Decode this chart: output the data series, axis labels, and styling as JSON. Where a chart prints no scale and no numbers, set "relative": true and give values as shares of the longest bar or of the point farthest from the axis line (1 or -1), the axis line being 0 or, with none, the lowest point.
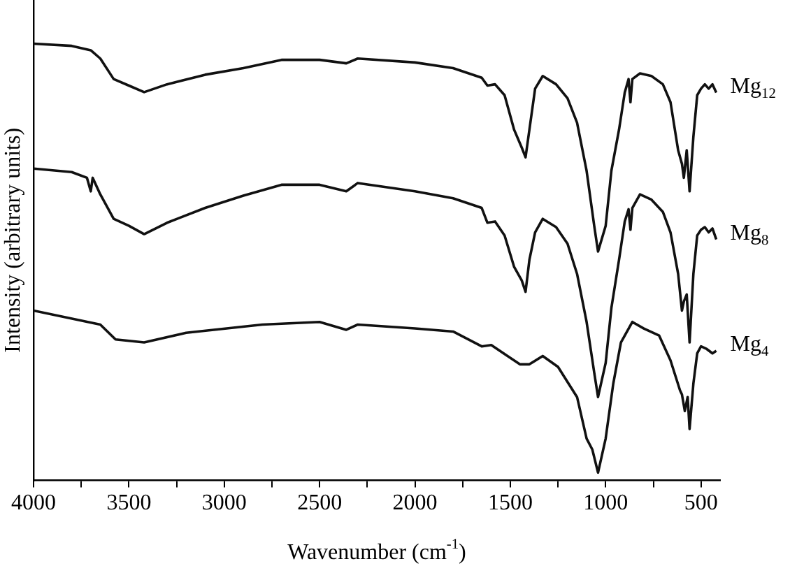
{
  "chart_data": {
    "type": "line",
    "xlabel": "Wavenumber (cm$^{-1}$)",
    "ylabel": "Intensity (arbitrary units)",
    "relative": true,
    "grid": false,
    "legend": false,
    "marker": "none",
    "line_style": "solid",
    "xlim": [
      4000,
      400
    ],
    "xticks": [
      4000,
      {
        "value": 3750,
        "label": null
      },
      3500,
      {
        "value": 3250,
        "label": null
      },
      3000,
      {
        "value": 2750,
        "label": null
      },
      2500,
      {
        "value": 2250,
        "label": null
      },
      2000,
      {
        "value": 1750,
        "label": null
      },
      1500,
      {
        "value": 1250,
        "label": null
      },
      1000,
      {
        "value": 750,
        "label": null
      },
      500
    ],
    "series": [
      {
        "name": "Mg$_{12}$",
        "color": "#111111",
        "x": [
          4000,
          3800,
          3700,
          3650,
          3580,
          3500,
          3420,
          3300,
          3100,
          2900,
          2700,
          2500,
          2360,
          2300,
          2000,
          1800,
          1650,
          1620,
          1580,
          1530,
          1480,
          1440,
          1420,
          1400,
          1370,
          1330,
          1260,
          1200,
          1150,
          1100,
          1060,
          1040,
          1000,
          970,
          930,
          900,
          880,
          870,
          860,
          820,
          760,
          700,
          660,
          620,
          600,
          590,
          575,
          560,
          540,
          520,
          500,
          480,
          460,
          440,
          420
        ],
        "values": [
          1.0,
          0.995,
          0.985,
          0.966,
          0.919,
          0.904,
          0.889,
          0.907,
          0.929,
          0.944,
          0.963,
          0.963,
          0.955,
          0.966,
          0.957,
          0.944,
          0.922,
          0.904,
          0.907,
          0.882,
          0.803,
          0.762,
          0.74,
          0.803,
          0.897,
          0.926,
          0.907,
          0.875,
          0.819,
          0.709,
          0.583,
          0.524,
          0.583,
          0.709,
          0.803,
          0.888,
          0.919,
          0.866,
          0.919,
          0.932,
          0.926,
          0.907,
          0.866,
          0.756,
          0.725,
          0.693,
          0.756,
          0.662,
          0.787,
          0.882,
          0.897,
          0.907,
          0.897,
          0.907,
          0.888
        ]
      },
      {
        "name": "Mg$_{8}$",
        "color": "#111111",
        "x": [
          4000,
          3800,
          3720,
          3700,
          3690,
          3650,
          3580,
          3500,
          3420,
          3300,
          3100,
          2900,
          2700,
          2500,
          2360,
          2300,
          2000,
          1800,
          1650,
          1620,
          1580,
          1530,
          1480,
          1440,
          1420,
          1400,
          1370,
          1330,
          1260,
          1200,
          1150,
          1100,
          1060,
          1040,
          1000,
          970,
          930,
          900,
          880,
          870,
          860,
          820,
          760,
          700,
          660,
          620,
          600,
          590,
          575,
          560,
          540,
          520,
          500,
          480,
          460,
          440,
          420
        ],
        "values": [
          0.714,
          0.706,
          0.693,
          0.662,
          0.693,
          0.655,
          0.599,
          0.583,
          0.564,
          0.59,
          0.624,
          0.652,
          0.677,
          0.677,
          0.662,
          0.681,
          0.662,
          0.646,
          0.624,
          0.59,
          0.593,
          0.561,
          0.489,
          0.458,
          0.432,
          0.505,
          0.568,
          0.599,
          0.58,
          0.542,
          0.473,
          0.363,
          0.247,
          0.191,
          0.269,
          0.395,
          0.505,
          0.593,
          0.621,
          0.574,
          0.624,
          0.655,
          0.643,
          0.615,
          0.568,
          0.473,
          0.389,
          0.41,
          0.426,
          0.316,
          0.473,
          0.561,
          0.574,
          0.58,
          0.568,
          0.577,
          0.552
        ]
      },
      {
        "name": "Mg$_{4}$",
        "color": "#111111",
        "x": [
          4000,
          3650,
          3570,
          3420,
          3200,
          2800,
          2500,
          2360,
          2300,
          2000,
          1800,
          1650,
          1600,
          1450,
          1400,
          1330,
          1250,
          1150,
          1100,
          1070,
          1040,
          1000,
          960,
          920,
          860,
          800,
          720,
          660,
          610,
          600,
          585,
          570,
          560,
          540,
          520,
          500,
          470,
          440,
          420
        ],
        "values": [
          0.389,
          0.357,
          0.323,
          0.316,
          0.338,
          0.357,
          0.363,
          0.345,
          0.357,
          0.348,
          0.341,
          0.307,
          0.31,
          0.266,
          0.266,
          0.285,
          0.26,
          0.191,
          0.096,
          0.071,
          0.018,
          0.096,
          0.222,
          0.316,
          0.363,
          0.348,
          0.332,
          0.275,
          0.206,
          0.197,
          0.159,
          0.191,
          0.118,
          0.222,
          0.291,
          0.307,
          0.301,
          0.291,
          0.297
        ]
      }
    ]
  }
}
